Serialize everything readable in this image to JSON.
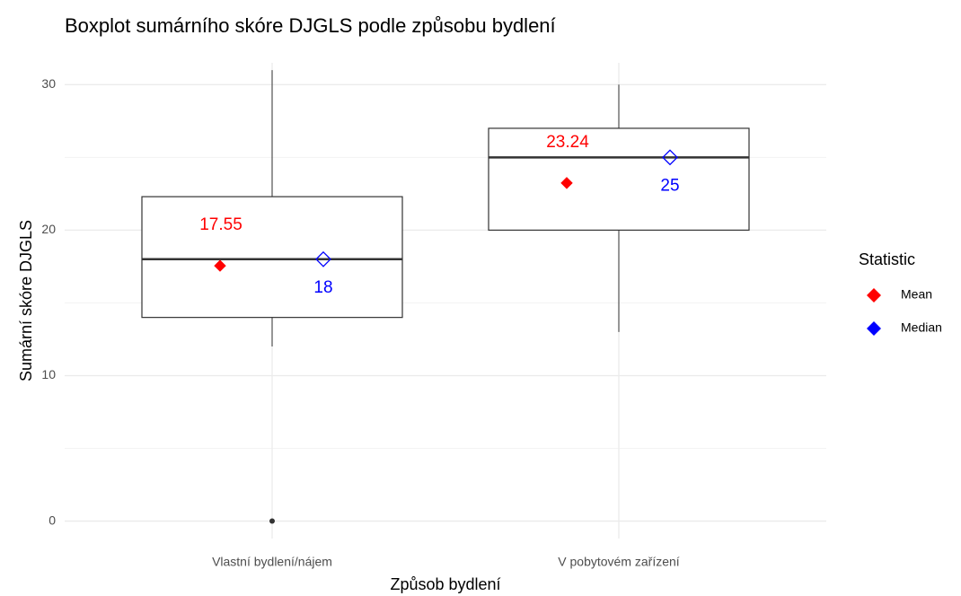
{
  "chart_data": {
    "type": "box",
    "title": "Boxplot sumárního skóre DJGLS podle způsobu bydlení",
    "x_label": "Způsob bydlení",
    "y_label": "Sumární skóre DJGLS",
    "categories": [
      "Vlastní bydlení/nájem",
      "V pobytovém zařízení"
    ],
    "boxes": [
      {
        "min": 12,
        "q1": 14,
        "median": 18,
        "q3": 22.3,
        "max": 31,
        "outliers": [
          0
        ]
      },
      {
        "min": 13,
        "q1": 20,
        "median": 25,
        "q3": 27,
        "max": 30,
        "outliers": []
      }
    ],
    "series": [
      {
        "name": "Mean",
        "color": "#ff0000",
        "values": [
          17.55,
          23.24
        ]
      },
      {
        "name": "Median",
        "color": "#0000ff",
        "values": [
          18,
          25
        ]
      }
    ],
    "legend_title": "Statistic",
    "ylim": [
      -1.2,
      31.5
    ],
    "yticks": [
      0,
      10,
      20,
      30
    ],
    "minor_yticks": [
      5,
      15,
      25
    ],
    "grid": true
  }
}
